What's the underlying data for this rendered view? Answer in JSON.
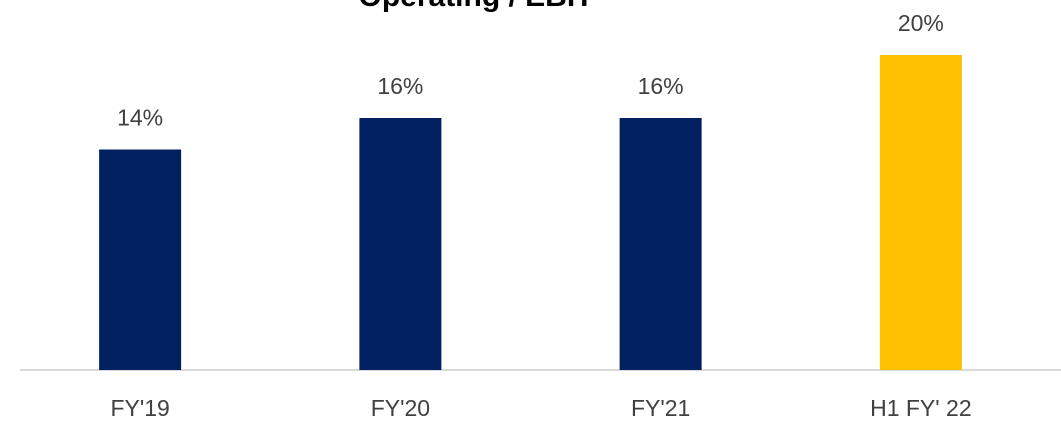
{
  "chart_data": {
    "type": "bar",
    "title": "Operating / EBIT",
    "categories": [
      "FY'19",
      "FY'20",
      "FY'21",
      "H1 FY' 22"
    ],
    "values": [
      14,
      16,
      16,
      20
    ],
    "value_labels": [
      "14%",
      "16%",
      "16%",
      "20%"
    ],
    "colors": [
      "#002060",
      "#002060",
      "#002060",
      "#ffc000"
    ]
  }
}
